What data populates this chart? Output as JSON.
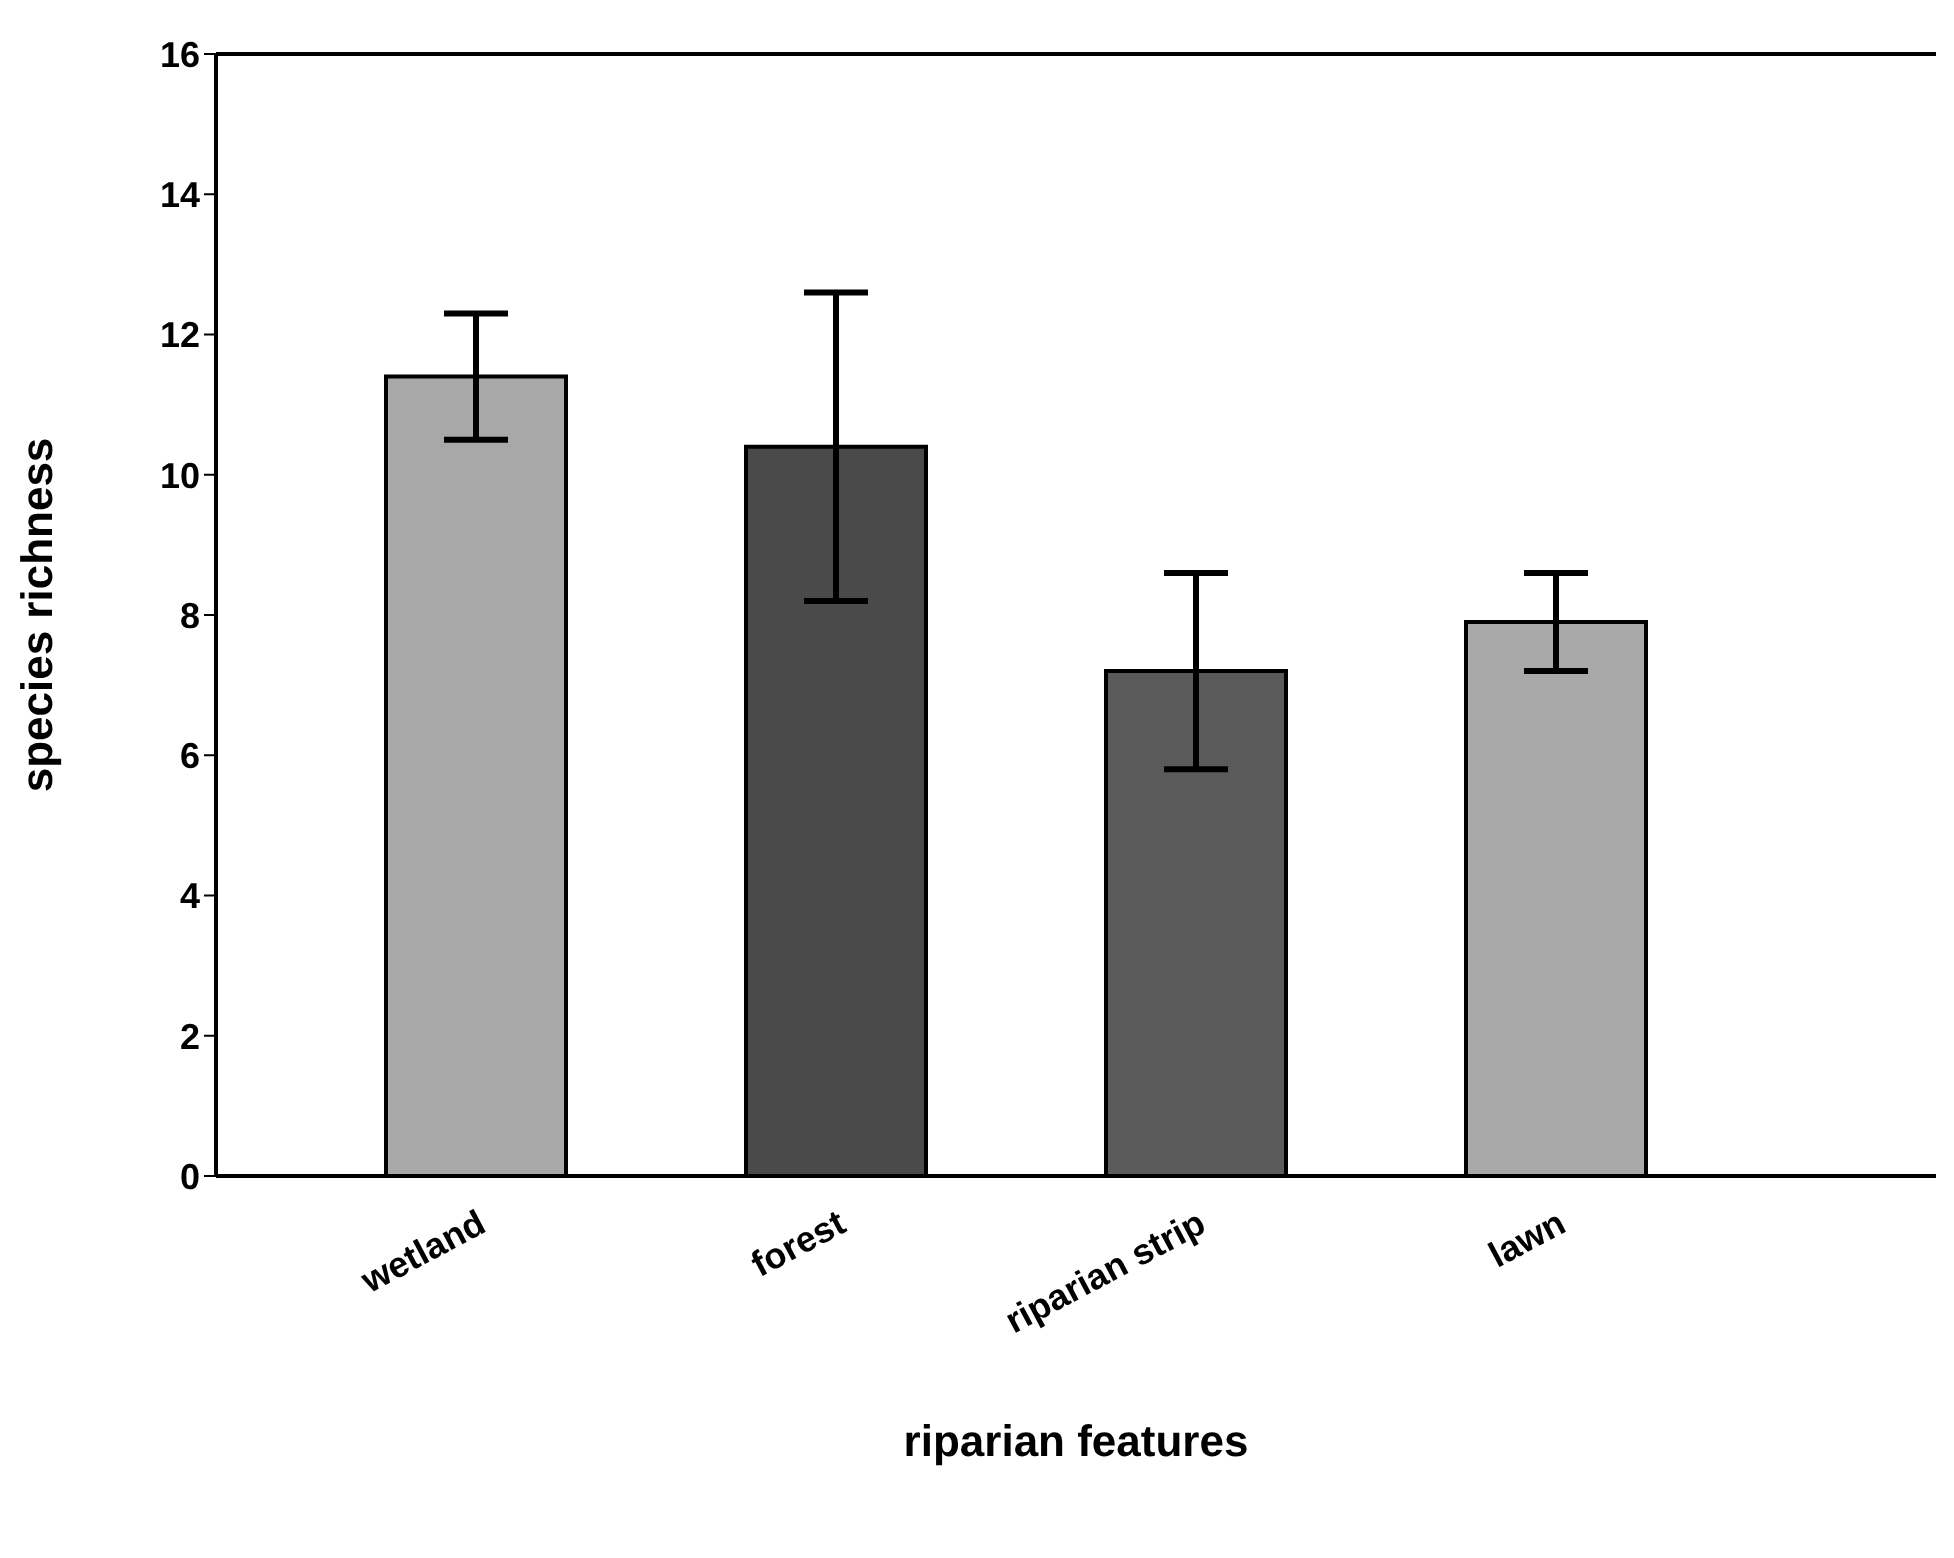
{
  "chart_data": {
    "type": "bar",
    "xlabel": "riparian features",
    "ylabel": "species richness",
    "categories": [
      "wetland",
      "forest",
      "riparian strip",
      "lawn"
    ],
    "values": [
      11.4,
      10.4,
      7.2,
      7.9
    ],
    "errors": [
      0.9,
      2.2,
      1.4,
      0.7
    ],
    "colors": [
      "#a8a8a8",
      "#4a4a4a",
      "#5a5a5a",
      "#a8a8a8"
    ],
    "ylim": [
      0,
      16
    ],
    "yticks": [
      0,
      2,
      4,
      6,
      8,
      10,
      12,
      14,
      16
    ],
    "grid": false
  }
}
